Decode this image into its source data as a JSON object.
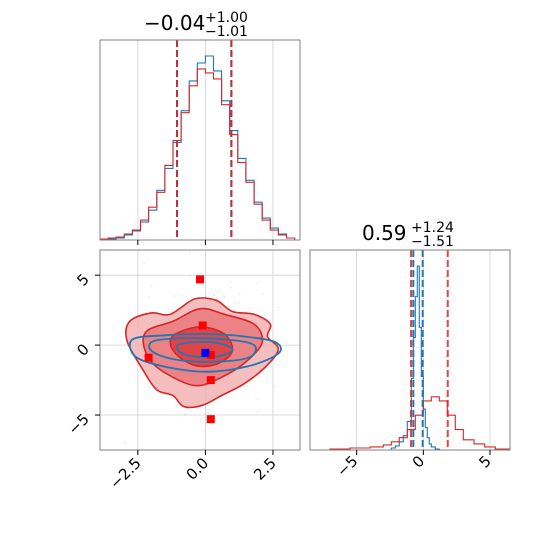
{
  "chart_data": [
    {
      "panel": "top-left",
      "type": "histogram",
      "title": {
        "median": "−0.04",
        "plus": "+1.00",
        "minus": "−1.01"
      },
      "xlim": [
        -3.9,
        3.5
      ],
      "grid": true,
      "xticks": [
        -2.5,
        0.0,
        2.5
      ],
      "vlines": {
        "red": [
          -1.05,
          0.96
        ],
        "blue": [
          -1.05,
          0.96
        ]
      },
      "series": [
        {
          "color": "#1f77b4",
          "bins": [
            -3.9,
            -3.6,
            -3.3,
            -3.0,
            -2.7,
            -2.4,
            -2.1,
            -1.8,
            -1.5,
            -1.2,
            -0.9,
            -0.6,
            -0.3,
            0.0,
            0.3,
            0.6,
            0.9,
            1.2,
            1.5,
            1.8,
            2.1,
            2.4,
            2.7,
            3.0,
            3.3
          ],
          "counts": [
            0,
            1,
            2,
            5,
            9,
            18,
            30,
            50,
            72,
            98,
            130,
            160,
            178,
            185,
            170,
            140,
            110,
            82,
            60,
            38,
            22,
            12,
            6,
            2
          ]
        },
        {
          "color": "#d62728",
          "bins": [
            -3.9,
            -3.6,
            -3.3,
            -3.0,
            -2.7,
            -2.4,
            -2.1,
            -1.8,
            -1.5,
            -1.2,
            -0.9,
            -0.6,
            -0.3,
            0.0,
            0.3,
            0.6,
            0.9,
            1.2,
            1.5,
            1.8,
            2.1,
            2.4,
            2.7,
            3.0,
            3.3
          ],
          "counts": [
            1,
            2,
            3,
            6,
            10,
            20,
            33,
            48,
            75,
            100,
            128,
            155,
            172,
            168,
            162,
            136,
            106,
            78,
            58,
            36,
            20,
            10,
            5,
            2
          ]
        }
      ]
    },
    {
      "panel": "bottom-left",
      "type": "scatter",
      "xlim": [
        -3.9,
        3.5
      ],
      "ylim": [
        -7.5,
        6.8
      ],
      "xticks": [
        -2.5,
        0.0,
        2.5
      ],
      "yticks": [
        -5,
        0,
        5
      ],
      "xticklabels": [
        "−2.5",
        "0.0",
        "2.5"
      ],
      "yticklabels": [
        "−5",
        "0",
        "5"
      ],
      "grid": true,
      "red_markers": [
        [
          -0.2,
          4.7
        ],
        [
          -2.1,
          -0.9
        ],
        [
          0.2,
          -2.5
        ],
        [
          0.2,
          -0.7
        ],
        [
          0.2,
          -5.3
        ],
        [
          -0.1,
          1.4
        ]
      ],
      "blue_marker": [
        0.0,
        -0.55
      ],
      "red_contours": [
        {
          "level": "outer",
          "points": [
            [
              -2.8,
              1.7
            ],
            [
              -2.0,
              2.3
            ],
            [
              -1.3,
              2.2
            ],
            [
              -0.4,
              3.3
            ],
            [
              0.4,
              3.2
            ],
            [
              1.0,
              2.4
            ],
            [
              1.8,
              2.2
            ],
            [
              2.4,
              1.5
            ],
            [
              2.3,
              0.6
            ],
            [
              2.7,
              -0.3
            ],
            [
              2.2,
              -1.6
            ],
            [
              1.4,
              -2.8
            ],
            [
              0.6,
              -3.6
            ],
            [
              -0.1,
              -4.3
            ],
            [
              -0.8,
              -4.4
            ],
            [
              -1.2,
              -3.6
            ],
            [
              -1.8,
              -3.2
            ],
            [
              -2.3,
              -1.8
            ],
            [
              -2.9,
              0.3
            ]
          ]
        },
        {
          "level": "middle",
          "points": [
            [
              -2.1,
              1.1
            ],
            [
              -1.2,
              1.7
            ],
            [
              -0.2,
              2.6
            ],
            [
              0.7,
              2.2
            ],
            [
              1.8,
              1.5
            ],
            [
              2.1,
              0.2
            ],
            [
              1.5,
              -1.2
            ],
            [
              0.6,
              -2.3
            ],
            [
              -0.3,
              -2.9
            ],
            [
              -1.2,
              -2.3
            ],
            [
              -2.0,
              -1.2
            ],
            [
              -2.3,
              0.2
            ]
          ]
        },
        {
          "level": "inner",
          "points": [
            [
              -1.1,
              0.8
            ],
            [
              -0.2,
              1.3
            ],
            [
              0.7,
              0.8
            ],
            [
              1.0,
              -0.4
            ],
            [
              0.5,
              -1.3
            ],
            [
              -0.3,
              -1.5
            ],
            [
              -1.0,
              -0.8
            ],
            [
              -1.3,
              0.1
            ]
          ]
        }
      ],
      "blue_contours": [
        {
          "level": "outer",
          "points": [
            [
              -2.7,
              0.4
            ],
            [
              -1.5,
              0.7
            ],
            [
              0.0,
              0.8
            ],
            [
              1.5,
              0.6
            ],
            [
              2.6,
              0.2
            ],
            [
              2.7,
              -0.6
            ],
            [
              1.6,
              -1.5
            ],
            [
              0.0,
              -1.9
            ],
            [
              -1.6,
              -1.5
            ],
            [
              -2.6,
              -0.8
            ]
          ]
        },
        {
          "level": "middle",
          "points": [
            [
              -1.9,
              0.3
            ],
            [
              -0.6,
              0.5
            ],
            [
              0.8,
              0.4
            ],
            [
              1.8,
              0.0
            ],
            [
              1.6,
              -0.9
            ],
            [
              0.2,
              -1.2
            ],
            [
              -1.2,
              -1.0
            ],
            [
              -2.0,
              -0.4
            ]
          ]
        },
        {
          "level": "inner",
          "points": [
            [
              -0.9,
              0.1
            ],
            [
              0.3,
              0.2
            ],
            [
              1.0,
              -0.3
            ],
            [
              0.5,
              -0.8
            ],
            [
              -0.5,
              -0.8
            ],
            [
              -1.0,
              -0.4
            ]
          ]
        }
      ]
    },
    {
      "panel": "bottom-right",
      "type": "histogram",
      "title": {
        "median": "0.59",
        "plus": "+1.24",
        "minus": "−1.51"
      },
      "xlim": [
        -8.5,
        6.5
      ],
      "xticks": [
        -5,
        0,
        5
      ],
      "xticklabels": [
        "−5",
        "0",
        "5"
      ],
      "grid": true,
      "vlines": {
        "red": [
          -0.92,
          1.83
        ],
        "blue": [
          -0.75,
          -0.05
        ]
      },
      "series": [
        {
          "color": "#1f77b4",
          "bins": [
            -8.5,
            -2.4,
            -2.1,
            -1.8,
            -1.5,
            -1.2,
            -0.9,
            -0.75,
            -0.6,
            -0.45,
            -0.3,
            -0.15,
            0.0,
            0.15,
            0.3,
            0.45,
            0.6,
            0.9,
            1.2,
            6.5
          ],
          "counts": [
            0,
            2,
            4,
            8,
            14,
            28,
            70,
            110,
            150,
            180,
            120,
            72,
            40,
            22,
            12,
            6,
            3,
            1,
            0
          ]
        },
        {
          "color": "#d62728",
          "bins": [
            -8.5,
            -7.0,
            -5.5,
            -4.0,
            -3.0,
            -2.4,
            -1.8,
            -1.2,
            -0.6,
            0.0,
            0.6,
            1.2,
            1.8,
            2.4,
            3.0,
            3.8,
            4.6,
            5.4,
            6.5
          ],
          "counts": [
            0,
            1,
            2,
            3,
            5,
            8,
            12,
            20,
            34,
            48,
            52,
            48,
            34,
            20,
            10,
            6,
            3,
            1
          ]
        }
      ]
    }
  ]
}
